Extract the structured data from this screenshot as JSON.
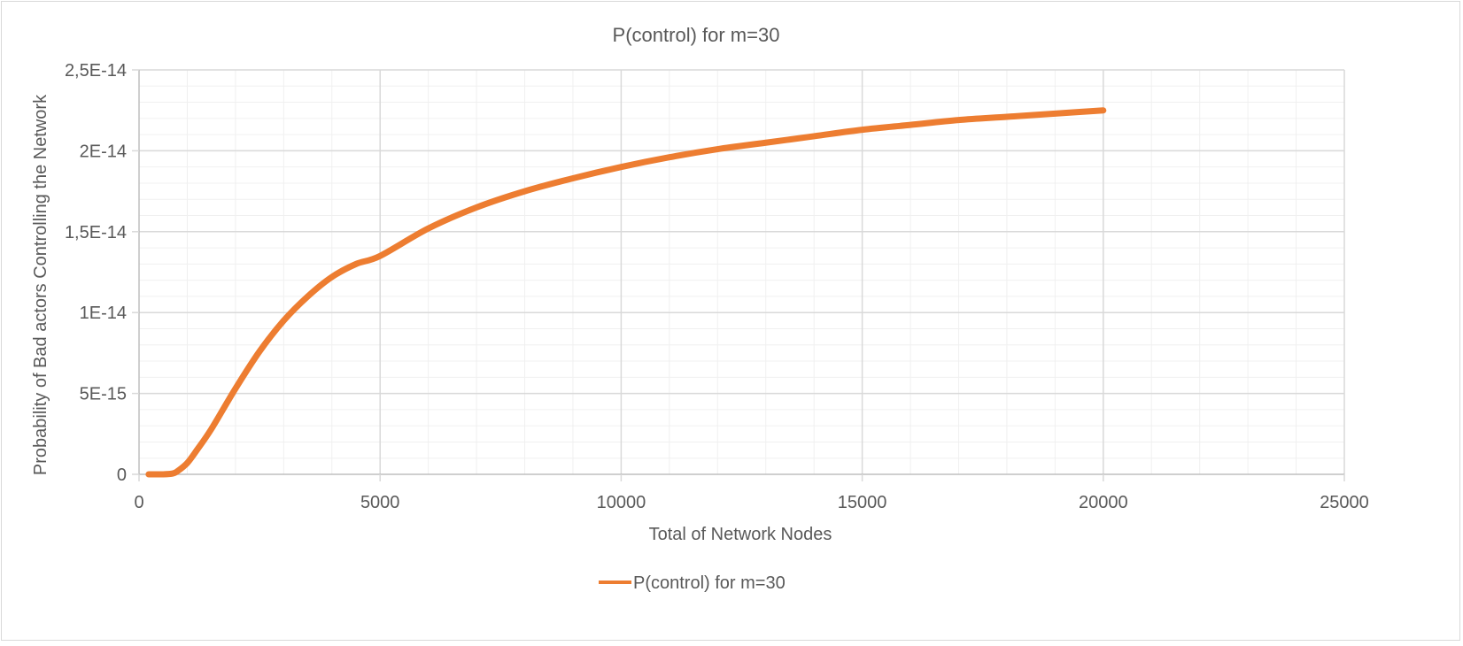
{
  "chart_data": {
    "type": "line",
    "title": "P(control) for m=30",
    "xlabel": "Total of Network Nodes",
    "ylabel": "Probability of Bad actors Controlling the Network",
    "xlim": [
      0,
      25000
    ],
    "ylim": [
      0,
      2.5e-14
    ],
    "x_ticks": [
      0,
      5000,
      10000,
      15000,
      20000,
      25000
    ],
    "x_tick_labels": [
      "0",
      "5000",
      "10000",
      "15000",
      "20000",
      "25000"
    ],
    "y_ticks": [
      0,
      5e-15,
      1e-14,
      1.5e-14,
      2e-14,
      2.5e-14
    ],
    "y_tick_labels": [
      "0",
      "5E-15",
      "1E-14",
      "1,5E-14",
      "2E-14",
      "2,5E-14"
    ],
    "x_minor_step": 1000,
    "y_minor_step": 1e-15,
    "grid": true,
    "legend_position": "bottom",
    "colors": {
      "series": "#ed7d31",
      "grid_major": "#d9d9d9",
      "grid_minor": "#f0f0f0",
      "text": "#595959"
    },
    "series": [
      {
        "name": "P(control) for m=30",
        "x": [
          200,
          500,
          700,
          800,
          1000,
          1200,
          1500,
          2000,
          2500,
          3000,
          3500,
          4000,
          4500,
          5000,
          6000,
          7000,
          8000,
          9000,
          10000,
          11000,
          12000,
          13000,
          14000,
          15000,
          16000,
          17000,
          18000,
          19000,
          20000
        ],
        "y": [
          0,
          0,
          5e-17,
          2e-16,
          7e-16,
          1.5e-15,
          2.8e-15,
          5.3e-15,
          7.6e-15,
          9.5e-15,
          1.1e-14,
          1.22e-14,
          1.3e-14,
          1.35e-14,
          1.52e-14,
          1.65e-14,
          1.75e-14,
          1.83e-14,
          1.9e-14,
          1.96e-14,
          2.01e-14,
          2.05e-14,
          2.09e-14,
          2.13e-14,
          2.16e-14,
          2.19e-14,
          2.21e-14,
          2.23e-14,
          2.25e-14
        ]
      }
    ]
  }
}
